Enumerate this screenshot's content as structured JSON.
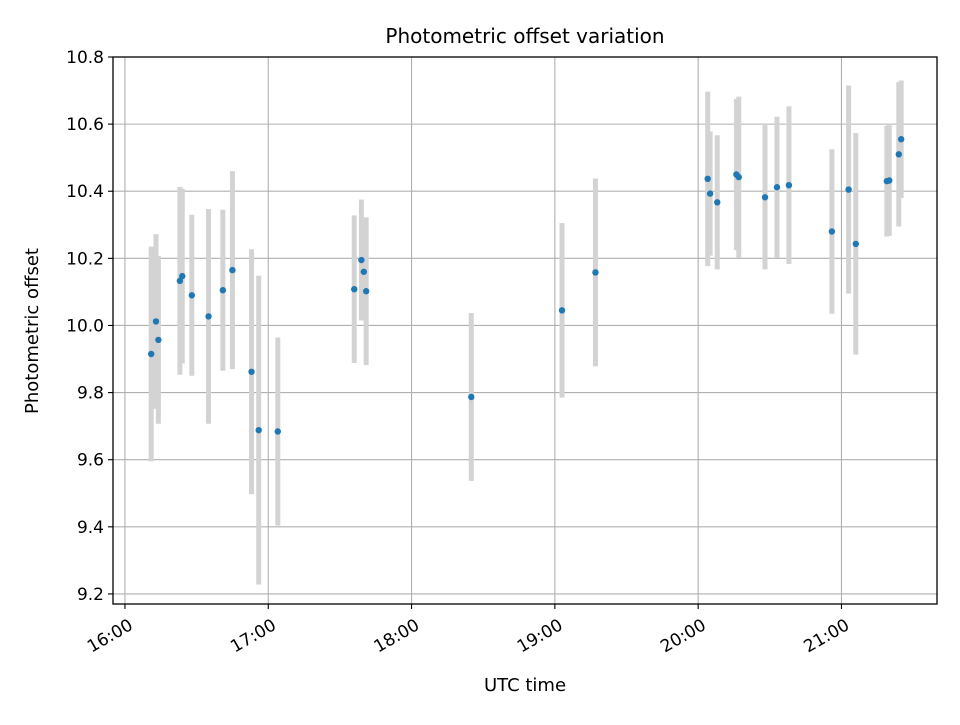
{
  "chart_data": {
    "type": "scatter",
    "title": "Photometric offset variation",
    "xlabel": "UTC time",
    "ylabel": "Photometric offset",
    "x_ticks": [
      "16:00",
      "17:00",
      "18:00",
      "19:00",
      "20:00",
      "21:00"
    ],
    "y_ticks": [
      "9.2",
      "9.4",
      "9.6",
      "9.8",
      "10.0",
      "10.2",
      "10.4",
      "10.6",
      "10.8"
    ],
    "xlim": [
      "15:55",
      "21:40"
    ],
    "ylim": [
      9.17,
      10.8
    ],
    "grid": true,
    "colors": {
      "point": "#1f77b4",
      "errorbar": "#d3d3d3",
      "grid": "#b0b0b0"
    },
    "series": [
      {
        "points": [
          {
            "x": "16:11",
            "y": 9.915,
            "err": 0.32
          },
          {
            "x": "16:13",
            "y": 10.012,
            "err": 0.26
          },
          {
            "x": "16:14",
            "y": 9.957,
            "err": 0.25
          },
          {
            "x": "16:23",
            "y": 10.133,
            "err": 0.28
          },
          {
            "x": "16:24",
            "y": 10.147,
            "err": 0.26
          },
          {
            "x": "16:28",
            "y": 10.09,
            "err": 0.24
          },
          {
            "x": "16:35",
            "y": 10.027,
            "err": 0.32
          },
          {
            "x": "16:41",
            "y": 10.105,
            "err": 0.24
          },
          {
            "x": "16:45",
            "y": 10.165,
            "err": 0.295
          },
          {
            "x": "16:53",
            "y": 9.862,
            "err": 0.365
          },
          {
            "x": "16:56",
            "y": 9.688,
            "err": 0.46
          },
          {
            "x": "17:04",
            "y": 9.684,
            "err": 0.28
          },
          {
            "x": "17:36",
            "y": 10.108,
            "err": 0.22
          },
          {
            "x": "17:39",
            "y": 10.195,
            "err": 0.18
          },
          {
            "x": "17:40",
            "y": 10.16,
            "err": 0.145
          },
          {
            "x": "17:41",
            "y": 10.102,
            "err": 0.22
          },
          {
            "x": "18:25",
            "y": 9.787,
            "err": 0.25
          },
          {
            "x": "19:03",
            "y": 10.045,
            "err": 0.26
          },
          {
            "x": "19:17",
            "y": 10.158,
            "err": 0.28
          },
          {
            "x": "20:04",
            "y": 10.437,
            "err": 0.26
          },
          {
            "x": "20:05",
            "y": 10.393,
            "err": 0.185
          },
          {
            "x": "20:08",
            "y": 10.367,
            "err": 0.2
          },
          {
            "x": "20:16",
            "y": 10.45,
            "err": 0.225
          },
          {
            "x": "20:17",
            "y": 10.442,
            "err": 0.24
          },
          {
            "x": "20:28",
            "y": 10.382,
            "err": 0.215
          },
          {
            "x": "20:33",
            "y": 10.412,
            "err": 0.21
          },
          {
            "x": "20:38",
            "y": 10.418,
            "err": 0.235
          },
          {
            "x": "20:56",
            "y": 10.28,
            "err": 0.245
          },
          {
            "x": "21:03",
            "y": 10.405,
            "err": 0.31
          },
          {
            "x": "21:06",
            "y": 10.243,
            "err": 0.33
          },
          {
            "x": "21:19",
            "y": 10.43,
            "err": 0.165
          },
          {
            "x": "21:20",
            "y": 10.432,
            "err": 0.165
          },
          {
            "x": "21:24",
            "y": 10.51,
            "err": 0.215
          },
          {
            "x": "21:25",
            "y": 10.555,
            "err": 0.175
          }
        ]
      }
    ]
  }
}
